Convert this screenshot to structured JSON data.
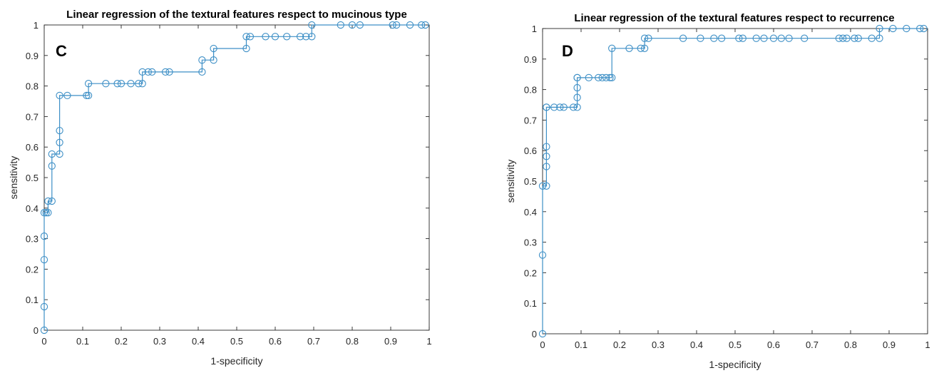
{
  "chart_data": [
    {
      "type": "line",
      "title": "Linear regression of the textural features respect to mucinous type",
      "panel_label": "C",
      "xlabel": "1-specificity",
      "ylabel": "sensitivity",
      "xlim": [
        0,
        1
      ],
      "ylim": [
        0,
        1
      ],
      "xticks": [
        "0",
        "0.1",
        "0.2",
        "0.3",
        "0.4",
        "0.5",
        "0.6",
        "0.7",
        "0.8",
        "0.9",
        "1"
      ],
      "yticks": [
        "0",
        "0.1",
        "0.2",
        "0.3",
        "0.4",
        "0.5",
        "0.6",
        "0.7",
        "0.8",
        "0.9",
        "1"
      ],
      "grid": false,
      "color": "#3d8fc6",
      "marker": "circle",
      "series": [
        {
          "x": [
            0,
            0,
            0,
            0,
            0,
            0.005,
            0.01,
            0.01,
            0.02,
            0.02,
            0.02,
            0.04,
            0.04,
            0.04,
            0.04,
            0.06,
            0.11,
            0.115,
            0.115,
            0.16,
            0.19,
            0.2,
            0.225,
            0.245,
            0.255,
            0.255,
            0.27,
            0.28,
            0.315,
            0.325,
            0.41,
            0.41,
            0.44,
            0.44,
            0.525,
            0.525,
            0.535,
            0.575,
            0.6,
            0.63,
            0.665,
            0.68,
            0.695,
            0.695,
            0.77,
            0.8,
            0.82,
            0.905,
            0.915,
            0.95,
            0.98,
            0.99
          ],
          "y": [
            0,
            0.077,
            0.231,
            0.308,
            0.385,
            0.385,
            0.385,
            0.423,
            0.423,
            0.538,
            0.577,
            0.577,
            0.615,
            0.654,
            0.769,
            0.769,
            0.769,
            0.769,
            0.808,
            0.808,
            0.808,
            0.808,
            0.808,
            0.808,
            0.808,
            0.846,
            0.846,
            0.846,
            0.846,
            0.846,
            0.846,
            0.885,
            0.885,
            0.923,
            0.923,
            0.962,
            0.962,
            0.962,
            0.962,
            0.962,
            0.962,
            0.962,
            0.962,
            1,
            1,
            1,
            1,
            1,
            1,
            1,
            1,
            1
          ]
        }
      ]
    },
    {
      "type": "line",
      "title": "Linear regression of the textural features respect to recurrence",
      "panel_label": "D",
      "xlabel": "1-specificity",
      "ylabel": "sensitivity",
      "xlim": [
        0,
        1
      ],
      "ylim": [
        0,
        1
      ],
      "xticks": [
        "0",
        "0.1",
        "0.2",
        "0.3",
        "0.4",
        "0.5",
        "0.6",
        "0.7",
        "0.8",
        "0.9",
        "1"
      ],
      "yticks": [
        "0",
        "0.1",
        "0.2",
        "0.3",
        "0.4",
        "0.5",
        "0.6",
        "0.7",
        "0.8",
        "0.9",
        "1"
      ],
      "grid": false,
      "color": "#3d8fc6",
      "marker": "circle",
      "series": [
        {
          "x": [
            0,
            0,
            0,
            0.01,
            0.01,
            0.01,
            0.01,
            0.01,
            0.01,
            0.03,
            0.045,
            0.055,
            0.08,
            0.09,
            0.09,
            0.09,
            0.09,
            0.09,
            0.12,
            0.145,
            0.155,
            0.165,
            0.175,
            0.18,
            0.18,
            0.225,
            0.255,
            0.265,
            0.265,
            0.275,
            0.365,
            0.41,
            0.445,
            0.465,
            0.51,
            0.52,
            0.555,
            0.575,
            0.6,
            0.62,
            0.64,
            0.68,
            0.77,
            0.78,
            0.79,
            0.81,
            0.82,
            0.855,
            0.875,
            0.875,
            0.91,
            0.945,
            0.98,
            0.99
          ],
          "y": [
            0,
            0.258,
            0.484,
            0.484,
            0.548,
            0.581,
            0.613,
            0.742,
            0.742,
            0.742,
            0.742,
            0.742,
            0.742,
            0.742,
            0.774,
            0.806,
            0.839,
            0.839,
            0.839,
            0.839,
            0.839,
            0.839,
            0.839,
            0.839,
            0.935,
            0.935,
            0.935,
            0.935,
            0.968,
            0.968,
            0.968,
            0.968,
            0.968,
            0.968,
            0.968,
            0.968,
            0.968,
            0.968,
            0.968,
            0.968,
            0.968,
            0.968,
            0.968,
            0.968,
            0.968,
            0.968,
            0.968,
            0.968,
            0.968,
            1,
            1,
            1,
            1,
            1
          ]
        }
      ]
    }
  ]
}
